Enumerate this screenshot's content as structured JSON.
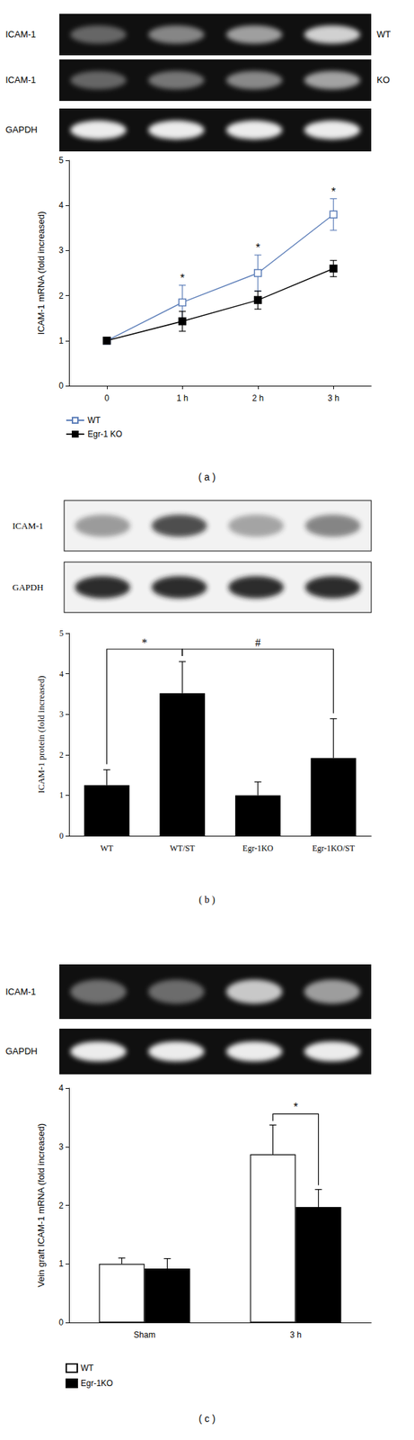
{
  "chart_data": [
    {
      "type": "line",
      "caption": "( a )",
      "categories": [
        "0",
        "1 h",
        "2 h",
        "3 h"
      ],
      "y_label": "ICAM-1 mRNA (fold increased)",
      "ylim": [
        0,
        5
      ],
      "yticks": [
        0,
        1,
        2,
        3,
        4,
        5
      ],
      "grid": false,
      "legend": "bottom left",
      "series": [
        {
          "name": "WT",
          "color": "#5b7db8",
          "marker": "open square",
          "values": [
            1,
            1.85,
            2.5,
            3.8
          ],
          "errors": [
            0,
            0.38,
            0.4,
            0.35
          ]
        },
        {
          "name": "Egr-1 KO",
          "color": "#000000",
          "marker": "square",
          "values": [
            1,
            1.43,
            1.9,
            2.6
          ],
          "errors": [
            0,
            0.22,
            0.2,
            0.18
          ]
        }
      ],
      "annotations": [
        {
          "text": "*",
          "category": "1 h",
          "series": "WT"
        },
        {
          "text": "*",
          "category": "2 h",
          "series": "WT"
        },
        {
          "text": "*",
          "category": "3 h",
          "series": "WT"
        }
      ],
      "blots": [
        {
          "label": "ICAM-1",
          "side_label": "WT",
          "series": "WT"
        },
        {
          "label": "ICAM-1",
          "side_label": "KO",
          "series": "Egr-1 KO"
        },
        {
          "label": "GAPDH"
        }
      ]
    },
    {
      "type": "bar",
      "caption": "( b )",
      "categories": [
        "WT",
        "WT/ST",
        "Egr-1KO",
        "Egr-1KO/ST"
      ],
      "values": [
        1.25,
        3.52,
        1.0,
        1.92
      ],
      "errors": [
        0.38,
        0.78,
        0.33,
        0.97
      ],
      "color": "#000000",
      "y_label": "ICAM-1 protein (fold increased)",
      "ylim": [
        0,
        5
      ],
      "yticks": [
        0,
        1,
        2,
        3,
        4,
        5
      ],
      "grid": false,
      "annotations": [
        {
          "text": "*",
          "from": "WT",
          "to": "WT/ST"
        },
        {
          "text": "#",
          "from": "WT/ST",
          "to": "Egr-1KO/ST"
        }
      ],
      "blots": [
        {
          "label": "ICAM-1",
          "from_data": true
        },
        {
          "label": "GAPDH"
        }
      ]
    },
    {
      "type": "bar",
      "caption": "( c )",
      "categories": [
        "Sham",
        "3 h"
      ],
      "y_label": "Vein graft ICAM-1 mRNA (fold increased)",
      "ylim": [
        0,
        4
      ],
      "yticks": [
        0,
        1,
        2,
        3,
        4
      ],
      "grid": false,
      "legend": "bottom left",
      "series": [
        {
          "name": "WT",
          "color": "#ffffff",
          "values": [
            1.0,
            2.87
          ],
          "errors": [
            0.1,
            0.5
          ]
        },
        {
          "name": "Egr-1KO",
          "color": "#000000",
          "values": [
            0.92,
            1.97
          ],
          "errors": [
            0.17,
            0.3
          ]
        }
      ],
      "annotations": [
        {
          "text": "*",
          "category": "3 h",
          "from": "WT",
          "to": "Egr-1KO"
        }
      ],
      "blots": [
        {
          "label": "ICAM-1",
          "from_data": true
        },
        {
          "label": "GAPDH"
        }
      ]
    }
  ]
}
